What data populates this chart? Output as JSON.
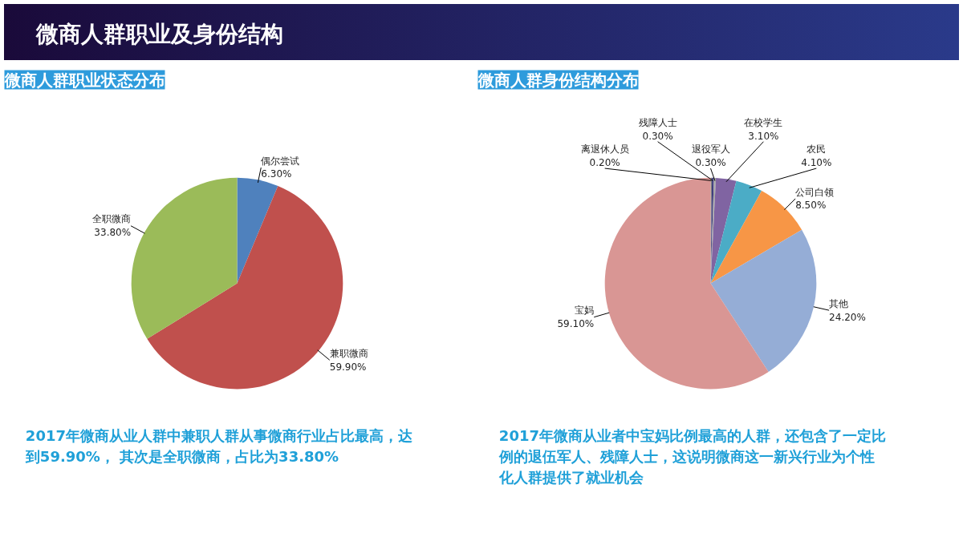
{
  "chart_data": [
    {
      "type": "pie",
      "title": "微商人群职业状态分布",
      "categories": [
        "偶尔尝试",
        "兼职微商",
        "全职微商"
      ],
      "values": [
        6.3,
        59.9,
        33.8
      ],
      "value_labels": [
        "6.30%",
        "59.90%",
        "33.80%"
      ],
      "colors": [
        "#4f81bd",
        "#c0504d",
        "#9bbb59"
      ],
      "annotations": [
        "微商人群职业及身份结构",
        "2017年微商从业人群中兼职人群从事微商行业占比最高，达到59.90%， 其次是全职微商，占比为33.80%"
      ]
    },
    {
      "type": "pie",
      "title": "微商人群身份结构分布",
      "categories": [
        "离退休人员",
        "残障人士",
        "退役军人",
        "在校学生",
        "农民",
        "公司白领",
        "其他",
        "宝妈"
      ],
      "values": [
        0.2,
        0.3,
        0.3,
        3.1,
        4.1,
        8.5,
        24.2,
        59.1
      ],
      "value_labels": [
        "0.20%",
        "0.30%",
        "0.30%",
        "3.10%",
        "4.10%",
        "8.50%",
        "24.20%",
        "59.10%"
      ],
      "colors": [
        "#7f7f7f",
        "#3f3f7f",
        "#a6a6a6",
        "#8064a2",
        "#4bacc6",
        "#f79646",
        "#95add6",
        "#d99694"
      ],
      "annotations": [
        "2017年微商从业者中宝妈比例最高的人群，还包含了一定比例的退伍军人、残障人士，这说明微商这一新兴行业为个性化人群提供了就业机会"
      ]
    }
  ]
}
